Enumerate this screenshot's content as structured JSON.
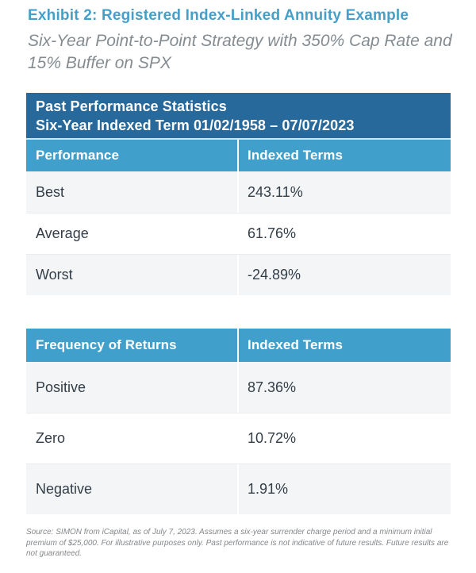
{
  "header": {
    "title": "Exhibit 2: Registered Index-Linked Annuity Example",
    "subtitle_line1": "Six-Year Point-to-Point Strategy with 350% Cap Rate and",
    "subtitle_line2": "15% Buffer on SPX"
  },
  "colors": {
    "title_blue": "#459fc9",
    "banner_dark_blue": "#27699a",
    "column_header_blue": "#419fcb",
    "row_alt_gray": "#f3f5f7",
    "body_text": "#333e48",
    "subtitle_gray": "#848c92",
    "footnote_gray": "#85888b"
  },
  "past_performance_table": {
    "banner_line1": "Past Performance Statistics",
    "banner_line2": "Six-Year Indexed Term 01/02/1958 – 07/07/2023",
    "col1_header": "Performance",
    "col2_header": "Indexed Terms",
    "rows": [
      {
        "label": "Best",
        "value": "243.11%"
      },
      {
        "label": "Average",
        "value": "61.76%"
      },
      {
        "label": "Worst",
        "value": "-24.89%"
      }
    ]
  },
  "frequency_table": {
    "col1_header": "Frequency of Returns",
    "col2_header": "Indexed Terms",
    "rows": [
      {
        "label": "Positive",
        "value": "87.36%"
      },
      {
        "label": "Zero",
        "value": "10.72%"
      },
      {
        "label": "Negative",
        "value": "1.91%"
      }
    ]
  },
  "footnote": {
    "text": "Source: SIMON from iCapital, as of July 7, 2023. Assumes a six-year surrender charge period and a minimum initial premium of $25,000. For illustrative purposes only. Past performance is not indicative of future results. Future results are not guaranteed."
  }
}
